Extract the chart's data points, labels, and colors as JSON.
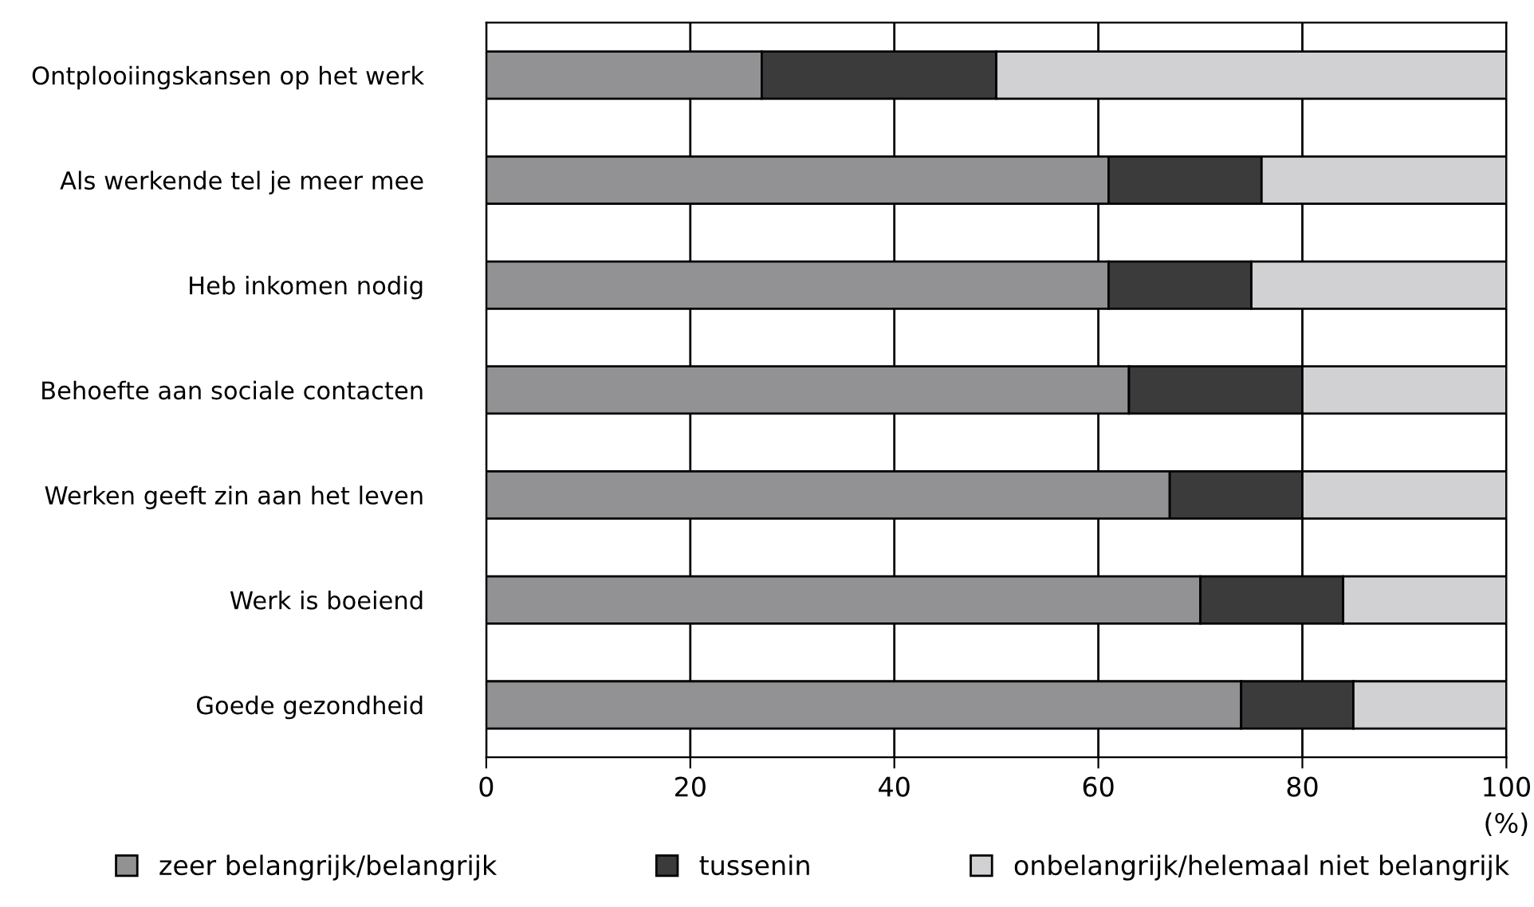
{
  "chart_data": {
    "type": "bar",
    "orientation": "horizontal",
    "stacked": true,
    "categories": [
      "Ontplooiingskansen op het werk",
      "Als werkende tel je meer mee",
      "Heb inkomen nodig",
      "Behoefte aan sociale contacten",
      "Werken geeft zin aan het leven",
      "Werk is boeiend",
      "Goede gezondheid"
    ],
    "series": [
      {
        "name": "zeer belangrijk/belangrijk",
        "color": "#929295",
        "values": [
          27,
          61,
          61,
          63,
          67,
          70,
          74
        ]
      },
      {
        "name": "tussenin",
        "color": "#3b3b3b",
        "values": [
          23,
          15,
          14,
          17,
          13,
          14,
          11
        ]
      },
      {
        "name": "onbelangrijk/helemaal niet belangrijk",
        "color": "#d1d1d3",
        "values": [
          50,
          24,
          25,
          20,
          20,
          16,
          15
        ]
      }
    ],
    "xlabel": "(%)",
    "xlim": [
      0,
      100
    ],
    "xticks": [
      0,
      20,
      40,
      60,
      80,
      100
    ],
    "grid": "x",
    "legend": "bottom"
  }
}
